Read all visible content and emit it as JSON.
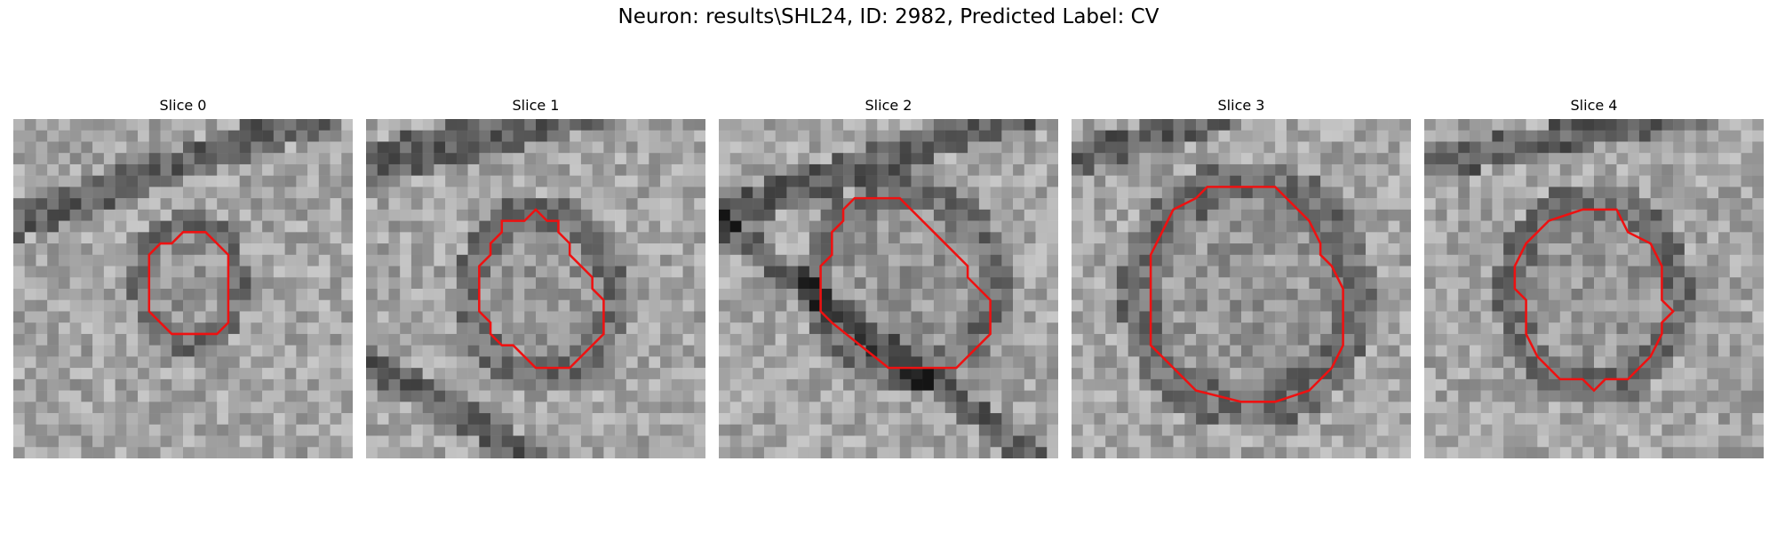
{
  "figure": {
    "title": "Neuron: results\\SHL24, ID: 2982, Predicted Label: CV"
  },
  "panels": [
    {
      "title": "Slice 0"
    },
    {
      "title": "Slice 1"
    },
    {
      "title": "Slice 2"
    },
    {
      "title": "Slice 3"
    },
    {
      "title": "Slice 4"
    }
  ],
  "colors": {
    "contour": "#ee1111",
    "background": "#ffffff"
  }
}
